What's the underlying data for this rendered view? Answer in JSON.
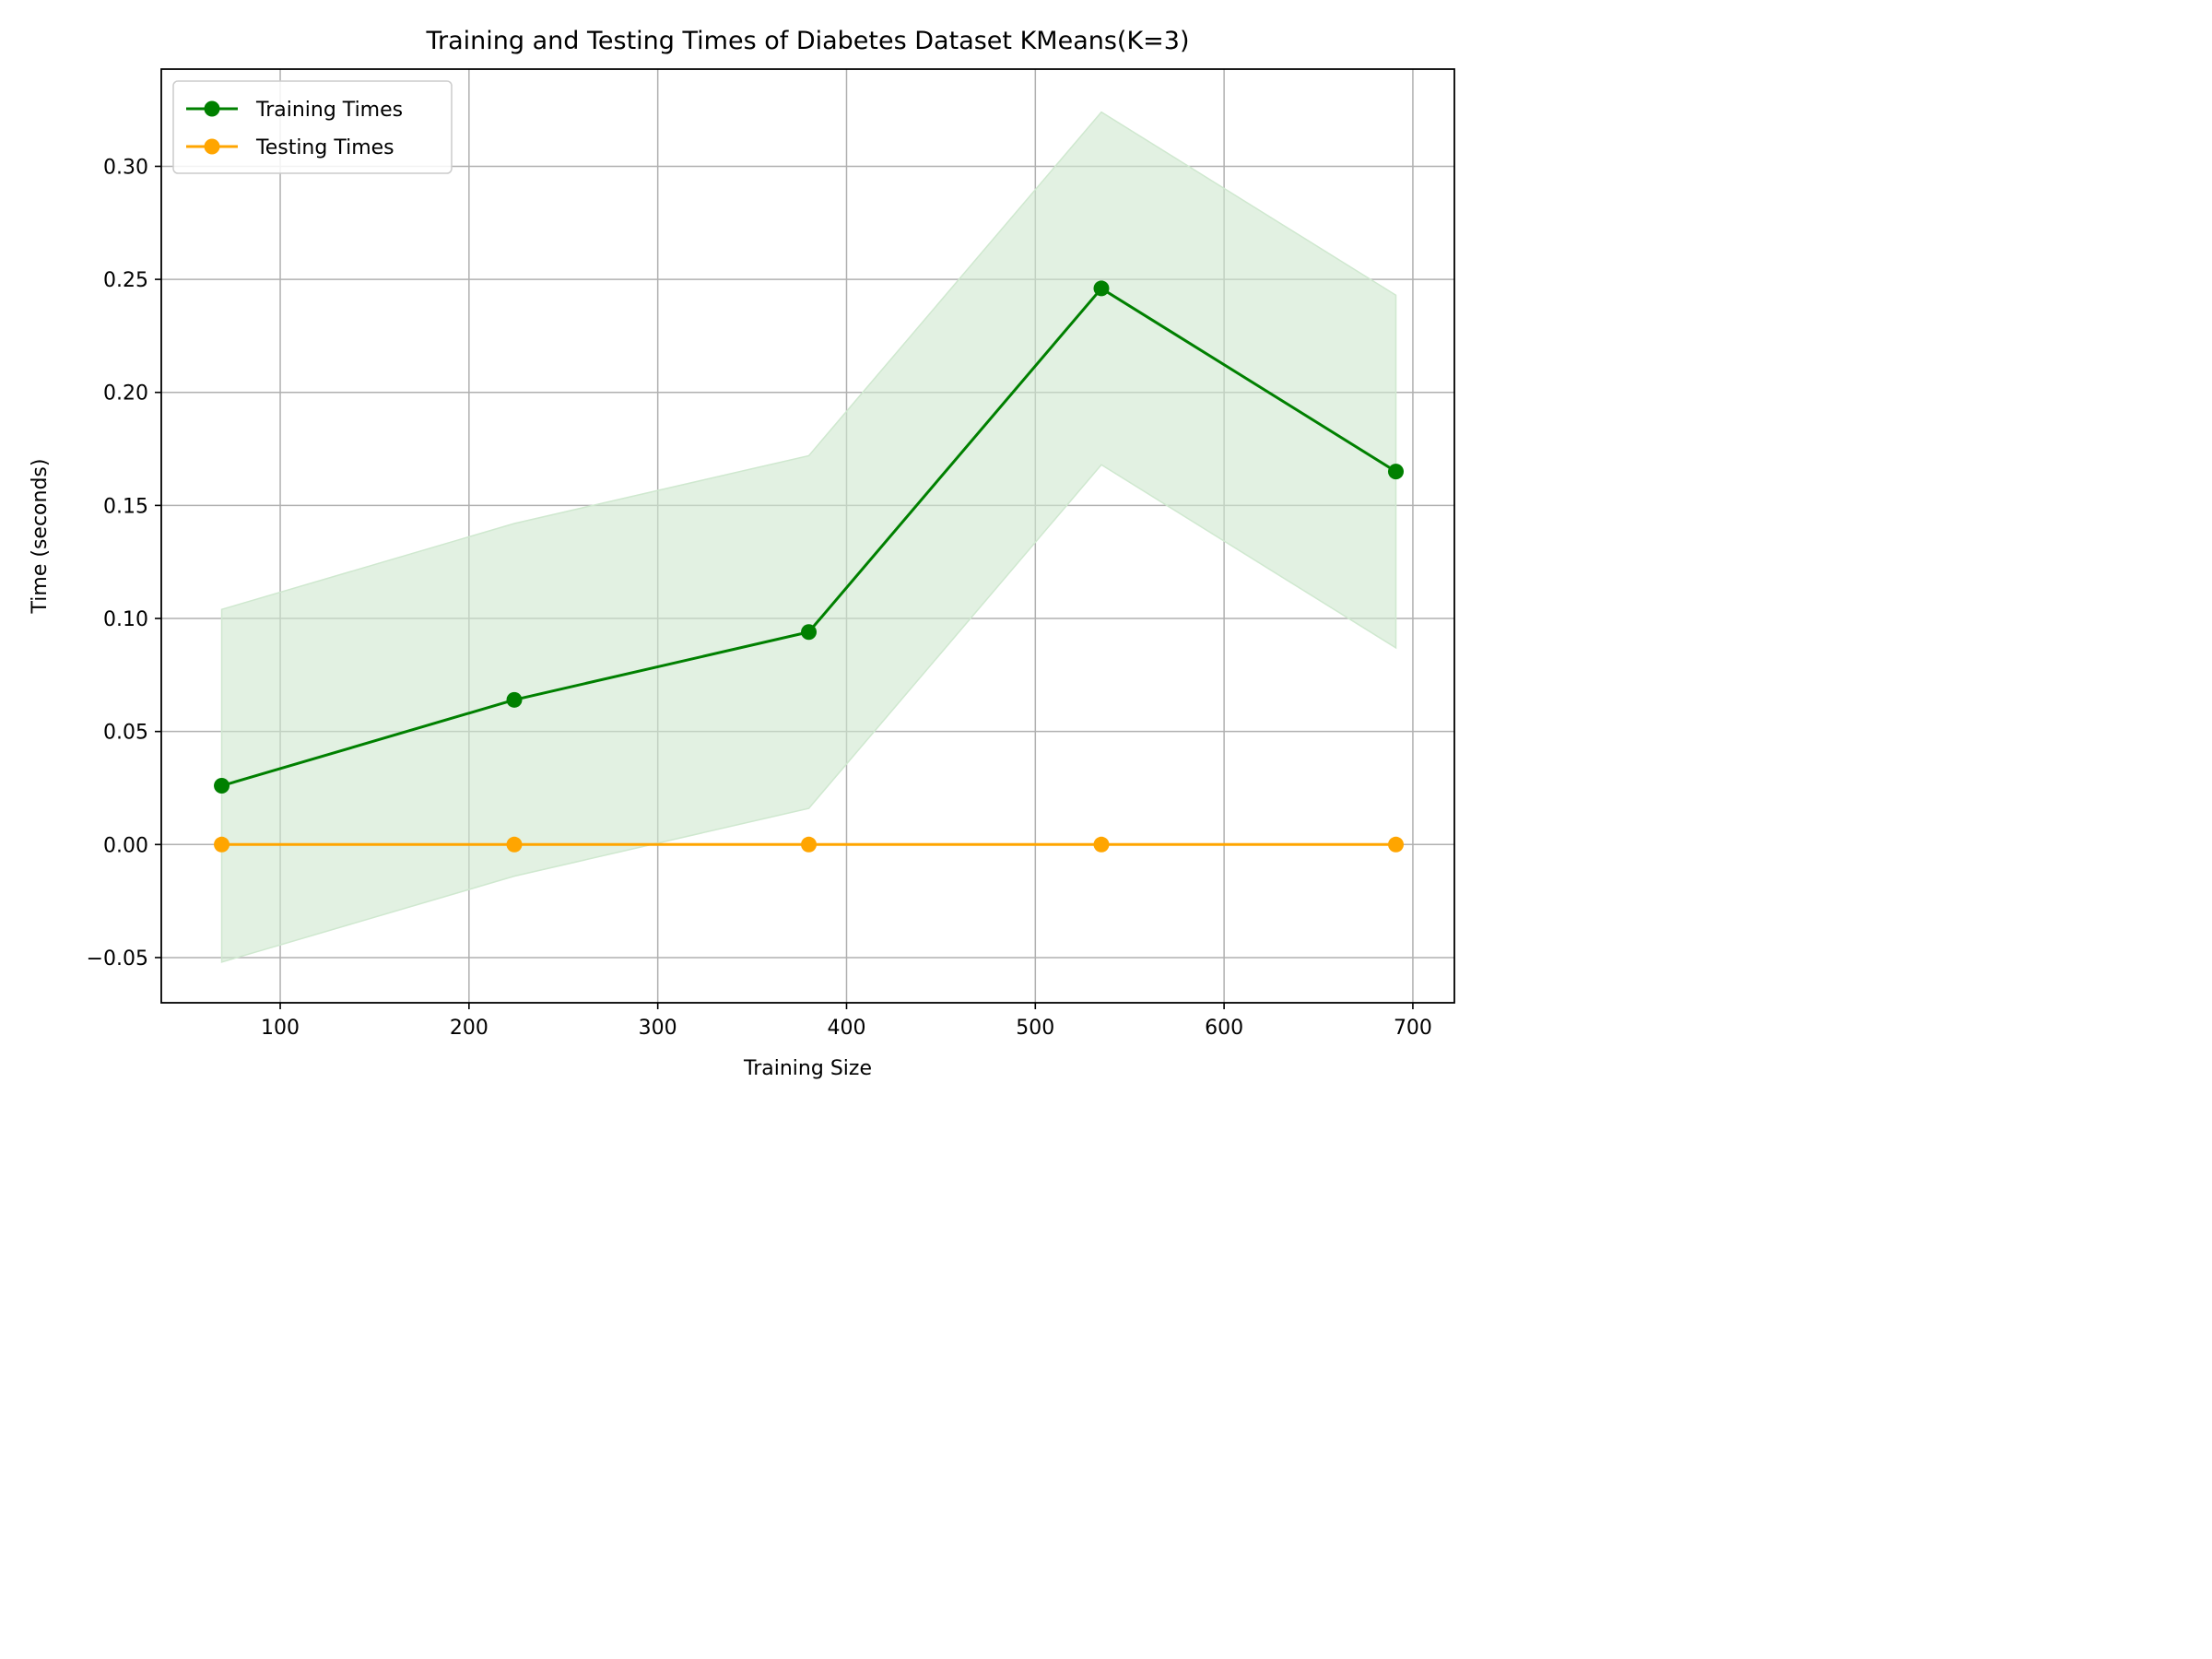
{
  "chart_data": {
    "type": "line",
    "title": "Training and Testing Times of Diabetes Dataset KMeans(K=3)",
    "xlabel": "Training Size",
    "ylabel": "Time (seconds)",
    "xlim": [
      37,
      722
    ],
    "ylim": [
      -0.07,
      0.343
    ],
    "xticks": [
      100,
      200,
      300,
      400,
      500,
      600,
      700
    ],
    "xtick_labels": [
      "100",
      "200",
      "300",
      "400",
      "500",
      "600",
      "700"
    ],
    "yticks": [
      -0.05,
      0.0,
      0.05,
      0.1,
      0.15,
      0.2,
      0.25,
      0.3
    ],
    "ytick_labels": [
      "−0.05",
      "0.00",
      "0.05",
      "0.10",
      "0.15",
      "0.20",
      "0.25",
      "0.30"
    ],
    "grid": true,
    "legend_position": "top-left",
    "x": [
      69,
      224,
      380,
      535,
      691
    ],
    "series": [
      {
        "name": "Training Times",
        "color": "#008000",
        "values": [
          0.026,
          0.064,
          0.094,
          0.246,
          0.165
        ],
        "band_upper": [
          0.104,
          0.142,
          0.172,
          0.324,
          0.243
        ],
        "band_lower": [
          -0.052,
          -0.014,
          0.016,
          0.168,
          0.087
        ],
        "band_color": "#cfe8cf"
      },
      {
        "name": "Testing Times",
        "color": "#ffa500",
        "values": [
          0.0,
          0.0,
          0.0,
          0.0,
          0.0
        ]
      }
    ]
  }
}
